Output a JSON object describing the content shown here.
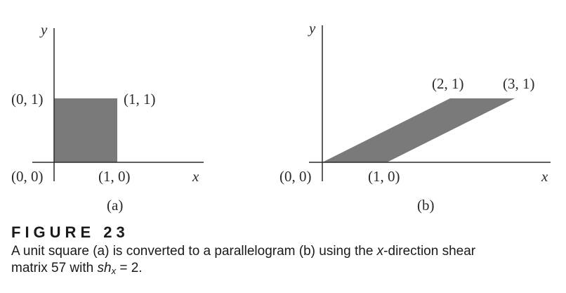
{
  "panel_a": {
    "y_label": "y",
    "x_label": "x",
    "origin_label": "(0, 0)",
    "x_point_label": "(1, 0)",
    "y_point_label": "(0, 1)",
    "corner_label": "(1, 1)",
    "panel_label": "(a)",
    "shape_color": "#7a7a7a"
  },
  "panel_b": {
    "y_label": "y",
    "x_label": "x",
    "origin_label": "(0, 0)",
    "x_point_label": "(1, 0)",
    "top_left_label": "(2, 1)",
    "top_right_label": "(3, 1)",
    "panel_label": "(b)",
    "shape_color": "#7a7a7a"
  },
  "caption": {
    "heading": "FIGURE 23",
    "line1_prefix": "A unit square (a) is converted to a parallelogram (b) using the ",
    "line1_var": "x",
    "line1_suffix": "-direction shear",
    "line2_prefix": "matrix 57 with ",
    "line2_var": "sh",
    "line2_sub": "x",
    "line2_suffix": " = 2."
  }
}
